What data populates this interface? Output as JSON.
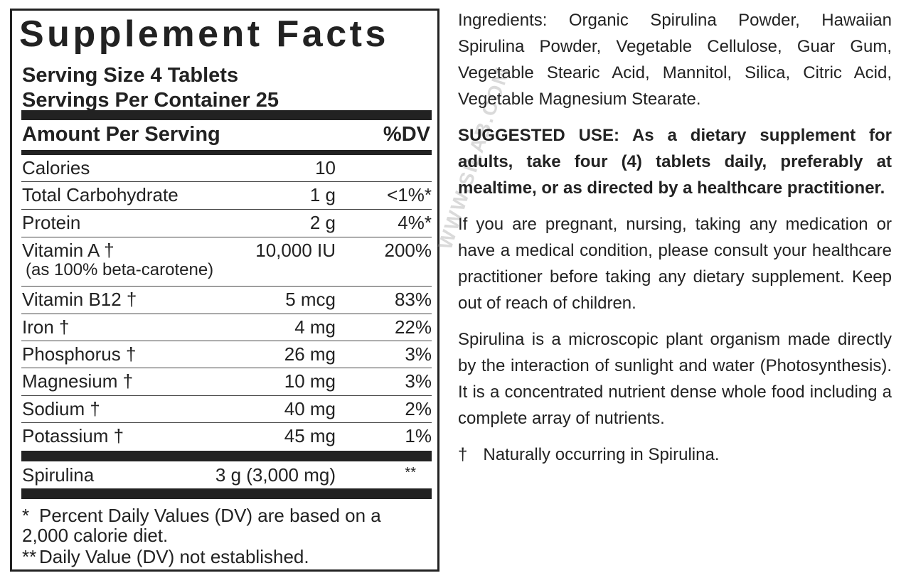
{
  "facts": {
    "title": "Supplement Facts",
    "serving_size": "Serving Size 4 Tablets",
    "servings_per_container": "Servings Per Container 25",
    "amount_header": "Amount Per Serving",
    "dv_header": "%DV",
    "rows": [
      {
        "name": "Calories",
        "amount": "10",
        "dv": ""
      },
      {
        "name": "Total Carbohydrate",
        "amount": "1 g",
        "dv": "<1%*"
      },
      {
        "name": "Protein",
        "amount": "2 g",
        "dv": "4%*"
      },
      {
        "name": "Vitamin A †",
        "sub": "(as 100% beta-carotene)",
        "amount": "10,000 IU",
        "dv": "200%"
      },
      {
        "name": "Vitamin B12 †",
        "amount": "5 mcg",
        "dv": "83%"
      },
      {
        "name": "Iron †",
        "amount": "4 mg",
        "dv": "22%"
      },
      {
        "name": "Phosphorus †",
        "amount": "26 mg",
        "dv": "3%"
      },
      {
        "name": "Magnesium †",
        "amount": "10 mg",
        "dv": "3%"
      },
      {
        "name": "Sodium †",
        "amount": "40 mg",
        "dv": "2%"
      },
      {
        "name": "Potassium †",
        "amount": "45 mg",
        "dv": "1%"
      }
    ],
    "blend": {
      "name": "Spirulina",
      "amount": "3 g (3,000 mg)",
      "dv": "**"
    },
    "footnotes": [
      {
        "symbol": "*",
        "text": "Percent Daily Values (DV) are based on a 2,000 calorie diet."
      },
      {
        "symbol": "**",
        "text": "Daily Value (DV) not established."
      }
    ]
  },
  "info": {
    "ingredients": "Ingredients: Organic Spirulina Powder, Hawaiian Spirulina Powder, Vegetable Cellulose, Guar Gum, Vegetable Stearic Acid, Mannitol, Silica, Citric Acid, Vegetable Magnesium Stearate.",
    "suggested_use": "SUGGESTED USE: As a dietary supplement for adults, take four (4) tablets daily, preferably at mealtime, or as directed by a healthcare practitioner.",
    "warning": "If you are pregnant, nursing, taking any medication or have a medical condition, please consult your healthcare practitioner before taking any dietary supplement. Keep out of reach of children.",
    "description": "Spirulina is a microscopic plant organism made directly by the interaction of sunlight and water (Photosynthesis). It is a concentrated nutrient dense whole food including a complete array of nutrients.",
    "dagger_symbol": "†",
    "dagger_note": "Naturally occurring in Spirulina."
  },
  "watermark": "WWW.SILAB.COM"
}
